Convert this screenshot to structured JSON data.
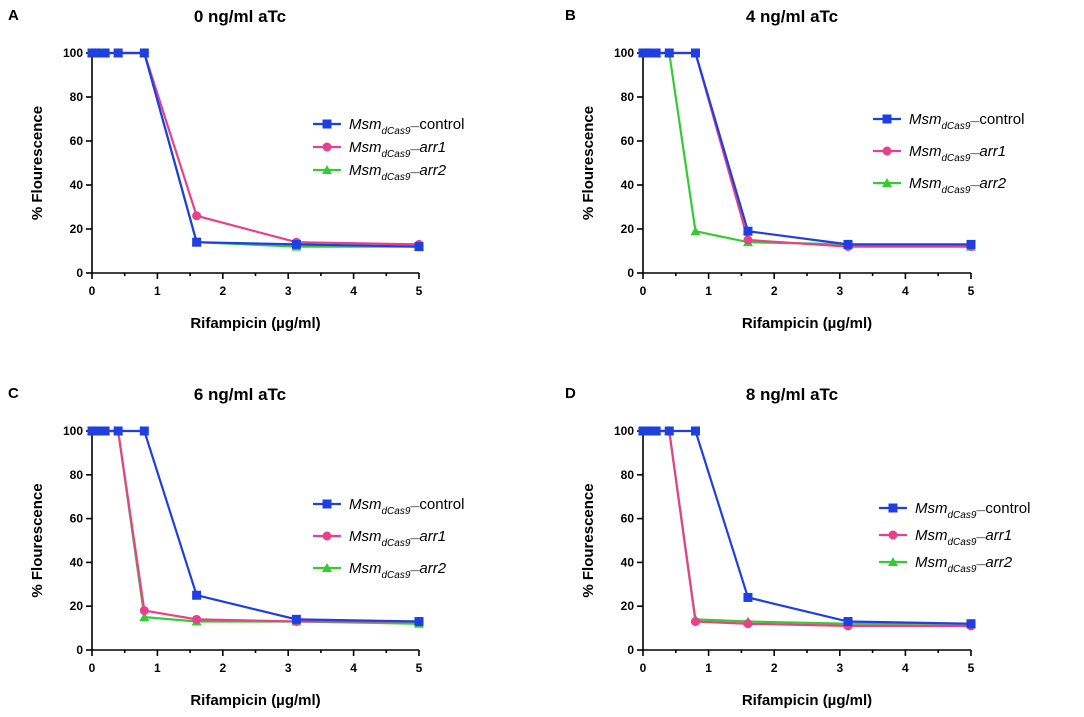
{
  "figure": {
    "x_tick_labels": [
      "0",
      "1",
      "2",
      "3",
      "4",
      "5"
    ],
    "y_tick_labels": [
      "0",
      "20",
      "40",
      "60",
      "80",
      "100"
    ]
  },
  "chart_data": [
    {
      "panel": "A",
      "type": "line",
      "title": "0 ng/ml aTc",
      "xlabel": "Rifampicin (µg/ml)",
      "ylabel": "% Flourescence",
      "xlim": [
        0,
        5
      ],
      "ylim": [
        0,
        100
      ],
      "legend_position": "right",
      "series": [
        {
          "name": "control",
          "legend_prefix": "Msm",
          "legend_sub": "dCas9",
          "legend_suffix": "control",
          "suffix_italic": false,
          "color": "#1f3fe0",
          "marker": "square",
          "x": [
            0,
            0.05,
            0.1,
            0.2,
            0.4,
            0.8,
            1.6,
            3.125,
            5
          ],
          "y": [
            100,
            100,
            100,
            100,
            100,
            100,
            14,
            13,
            12
          ]
        },
        {
          "name": "arr1",
          "legend_prefix": "Msm",
          "legend_sub": "dCas9",
          "legend_suffix": "arr1",
          "suffix_italic": true,
          "color": "#e8408a",
          "marker": "circle",
          "x": [
            0,
            0.05,
            0.1,
            0.2,
            0.4,
            0.8,
            1.6,
            3.125,
            5
          ],
          "y": [
            100,
            100,
            100,
            100,
            100,
            100,
            26,
            14,
            13
          ]
        },
        {
          "name": "arr2",
          "legend_prefix": "Msm",
          "legend_sub": "dCas9",
          "legend_suffix": "arr2",
          "suffix_italic": true,
          "color": "#33cc33",
          "marker": "triangle",
          "x": [
            0,
            0.05,
            0.1,
            0.2,
            0.4,
            0.8,
            1.6,
            3.125,
            5
          ],
          "y": [
            100,
            100,
            100,
            100,
            100,
            100,
            14,
            12,
            12
          ]
        }
      ]
    },
    {
      "panel": "B",
      "type": "line",
      "title": "4 ng/ml aTc",
      "xlabel": "Rifampicin (µg/ml)",
      "ylabel": "% Flourescence",
      "xlim": [
        0,
        5
      ],
      "ylim": [
        0,
        100
      ],
      "legend_position": "right",
      "series": [
        {
          "name": "control",
          "legend_prefix": "Msm",
          "legend_sub": "dCas9",
          "legend_suffix": "control",
          "suffix_italic": false,
          "color": "#1f3fe0",
          "marker": "square",
          "x": [
            0,
            0.05,
            0.1,
            0.2,
            0.4,
            0.8,
            1.6,
            3.125,
            5
          ],
          "y": [
            100,
            100,
            100,
            100,
            100,
            100,
            19,
            13,
            13
          ]
        },
        {
          "name": "arr1",
          "legend_prefix": "Msm",
          "legend_sub": "dCas9",
          "legend_suffix": "arr1",
          "suffix_italic": true,
          "color": "#e8408a",
          "marker": "circle",
          "x": [
            0,
            0.05,
            0.1,
            0.2,
            0.4,
            0.8,
            1.6,
            3.125,
            5
          ],
          "y": [
            100,
            100,
            100,
            100,
            100,
            100,
            15,
            12,
            12
          ]
        },
        {
          "name": "arr2",
          "legend_prefix": "Msm",
          "legend_sub": "dCas9",
          "legend_suffix": "arr2",
          "suffix_italic": true,
          "color": "#33cc33",
          "marker": "triangle",
          "x": [
            0,
            0.05,
            0.1,
            0.2,
            0.4,
            0.8,
            1.6,
            3.125,
            5
          ],
          "y": [
            100,
            100,
            100,
            100,
            100,
            19,
            14,
            13,
            12
          ]
        }
      ]
    },
    {
      "panel": "C",
      "type": "line",
      "title": "6 ng/ml aTc",
      "xlabel": "Rifampicin (µg/ml)",
      "ylabel": "% Flourescence",
      "xlim": [
        0,
        5
      ],
      "ylim": [
        0,
        100
      ],
      "legend_position": "right",
      "series": [
        {
          "name": "control",
          "legend_prefix": "Msm",
          "legend_sub": "dCas9",
          "legend_suffix": "control",
          "suffix_italic": false,
          "color": "#1f3fe0",
          "marker": "square",
          "x": [
            0,
            0.05,
            0.1,
            0.2,
            0.4,
            0.8,
            1.6,
            3.125,
            5
          ],
          "y": [
            100,
            100,
            100,
            100,
            100,
            100,
            25,
            14,
            13
          ]
        },
        {
          "name": "arr1",
          "legend_prefix": "Msm",
          "legend_sub": "dCas9",
          "legend_suffix": "arr1",
          "suffix_italic": true,
          "color": "#e8408a",
          "marker": "circle",
          "x": [
            0,
            0.05,
            0.1,
            0.2,
            0.4,
            0.8,
            1.6,
            3.125,
            5
          ],
          "y": [
            100,
            100,
            100,
            100,
            100,
            18,
            14,
            13,
            13
          ]
        },
        {
          "name": "arr2",
          "legend_prefix": "Msm",
          "legend_sub": "dCas9",
          "legend_suffix": "arr2",
          "suffix_italic": true,
          "color": "#33cc33",
          "marker": "triangle",
          "x": [
            0,
            0.05,
            0.1,
            0.2,
            0.4,
            0.8,
            1.6,
            3.125,
            5
          ],
          "y": [
            100,
            100,
            100,
            100,
            100,
            15,
            13,
            13,
            12
          ]
        }
      ]
    },
    {
      "panel": "D",
      "type": "line",
      "title": "8 ng/ml aTc",
      "xlabel": "Rifampicin (µg/ml)",
      "ylabel": "% Flourescence",
      "xlim": [
        0,
        5
      ],
      "ylim": [
        0,
        100
      ],
      "legend_position": "right",
      "series": [
        {
          "name": "control",
          "legend_prefix": "Msm",
          "legend_sub": "dCas9",
          "legend_suffix": "control",
          "suffix_italic": false,
          "color": "#1f3fe0",
          "marker": "square",
          "x": [
            0,
            0.05,
            0.1,
            0.2,
            0.4,
            0.8,
            1.6,
            3.125,
            5
          ],
          "y": [
            100,
            100,
            100,
            100,
            100,
            100,
            24,
            13,
            12
          ]
        },
        {
          "name": "arr1",
          "legend_prefix": "Msm",
          "legend_sub": "dCas9",
          "legend_suffix": "arr1",
          "suffix_italic": true,
          "color": "#e8408a",
          "marker": "circle",
          "x": [
            0,
            0.05,
            0.1,
            0.2,
            0.4,
            0.8,
            1.6,
            3.125,
            5
          ],
          "y": [
            100,
            100,
            100,
            100,
            100,
            13,
            12,
            11,
            11
          ]
        },
        {
          "name": "arr2",
          "legend_prefix": "Msm",
          "legend_sub": "dCas9",
          "legend_suffix": "arr2",
          "suffix_italic": true,
          "color": "#33cc33",
          "marker": "triangle",
          "x": [
            0,
            0.05,
            0.1,
            0.2,
            0.4,
            0.8,
            1.6,
            3.125,
            5
          ],
          "y": [
            100,
            100,
            100,
            100,
            100,
            14,
            13,
            12,
            12
          ]
        }
      ]
    }
  ]
}
